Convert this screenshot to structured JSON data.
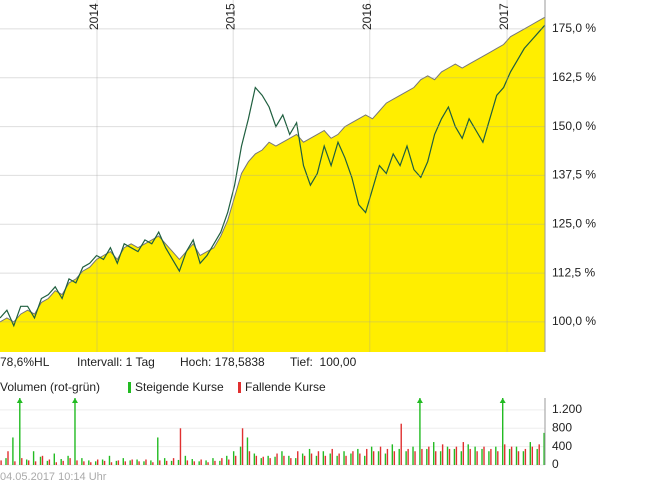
{
  "chart_data": [
    {
      "type": "area",
      "xlim": [
        0,
        79
      ],
      "xticks": [
        {
          "value": 14.06,
          "label": "2014"
        },
        {
          "value": 33.8,
          "label": "2015"
        },
        {
          "value": 53.6,
          "label": "2016"
        },
        {
          "value": 73.5,
          "label": "2017"
        }
      ],
      "ylim": [
        92.3,
        182.4
      ],
      "yticks": [
        {
          "value": 100,
          "label": "100,0 %"
        },
        {
          "value": 112.5,
          "label": "112,5 %"
        },
        {
          "value": 125,
          "label": "125,0 %"
        },
        {
          "value": 137.5,
          "label": "137,5 %"
        },
        {
          "value": 150,
          "label": "150,0 %"
        },
        {
          "value": 162.5,
          "label": "162,5 %"
        },
        {
          "value": 175,
          "label": "175,0 %"
        }
      ],
      "grid": true,
      "series": [
        {
          "color": "#ffee00",
          "line_color": "#777777",
          "style": "area",
          "values": [
            100,
            101,
            100,
            102,
            103,
            102,
            105,
            106,
            108,
            107,
            110,
            111,
            113,
            114,
            116,
            117,
            118,
            116,
            119,
            120,
            119,
            120,
            121,
            122,
            120,
            118,
            116,
            118,
            120,
            117,
            118,
            119,
            122,
            126,
            132,
            138,
            141,
            143,
            144,
            146,
            145,
            146,
            147,
            148,
            146,
            147,
            148,
            149,
            147,
            148,
            150,
            151,
            152,
            153,
            152,
            154,
            156,
            157,
            158,
            159,
            160,
            162,
            163,
            162,
            164,
            165,
            166,
            165,
            166,
            167,
            168,
            169,
            170,
            171,
            173,
            174,
            175,
            176,
            177,
            178
          ]
        },
        {
          "color": "#1f5f3f",
          "style": "line",
          "values": [
            101,
            103,
            99,
            104,
            104,
            101,
            106,
            107,
            109,
            106,
            111,
            110,
            114,
            115,
            117,
            116,
            119,
            115,
            120,
            119,
            118,
            121,
            120,
            123,
            119,
            116,
            113,
            118,
            121,
            115,
            117,
            120,
            123,
            128,
            135,
            145,
            152,
            160,
            158,
            155,
            150,
            153,
            148,
            151,
            140,
            135,
            138,
            145,
            140,
            146,
            142,
            137,
            130,
            128,
            134,
            140,
            138,
            143,
            140,
            145,
            139,
            137,
            141,
            148,
            152,
            155,
            150,
            147,
            152,
            149,
            146,
            152,
            158,
            160,
            164,
            167,
            170,
            172,
            174,
            176
          ]
        }
      ],
      "info": [
        "78,6%HL",
        "Intervall: 1 Tag",
        "Hoch: 178,5838",
        "Tief:  100,00"
      ]
    },
    {
      "type": "bar",
      "title": "Volumen (rot-grün)",
      "xlim": [
        0,
        79
      ],
      "ylim": [
        0,
        1460
      ],
      "yticks": [
        0,
        400,
        800,
        {
          "value": 1200,
          "label": "1.200"
        }
      ],
      "series": [
        {
          "name": "Steigende Kurse",
          "color": "#22bb22",
          "values": [
            200,
            150,
            600,
            1500,
            120,
            300,
            180,
            90,
            250,
            130,
            200,
            1500,
            150,
            100,
            80,
            120,
            200,
            90,
            150,
            100,
            120,
            80,
            100,
            600,
            150,
            90,
            110,
            200,
            130,
            80,
            100,
            150,
            90,
            200,
            300,
            400,
            600,
            250,
            150,
            200,
            180,
            300,
            200,
            150,
            250,
            350,
            200,
            300,
            250,
            200,
            300,
            250,
            350,
            200,
            400,
            300,
            250,
            450,
            350,
            300,
            400,
            1500,
            350,
            500,
            300,
            400,
            350,
            300,
            450,
            400,
            350,
            300,
            400,
            1500,
            350,
            400,
            300,
            500,
            350,
            700
          ]
        },
        {
          "name": "Fallende Kurse",
          "color": "#e03030",
          "values": [
            100,
            300,
            80,
            150,
            100,
            80,
            200,
            120,
            60,
            90,
            150,
            100,
            80,
            60,
            120,
            90,
            60,
            100,
            80,
            120,
            80,
            120,
            60,
            100,
            90,
            150,
            800,
            100,
            80,
            120,
            60,
            90,
            150,
            120,
            200,
            800,
            300,
            200,
            180,
            150,
            250,
            200,
            150,
            300,
            200,
            250,
            300,
            200,
            350,
            250,
            200,
            300,
            250,
            350,
            300,
            400,
            350,
            300,
            900,
            350,
            300,
            350,
            400,
            300,
            450,
            350,
            400,
            500,
            350,
            300,
            400,
            350,
            300,
            450,
            400,
            300,
            350,
            400,
            450,
            300
          ]
        }
      ]
    }
  ],
  "footer": "04.05.2017 10:14 Uhr"
}
